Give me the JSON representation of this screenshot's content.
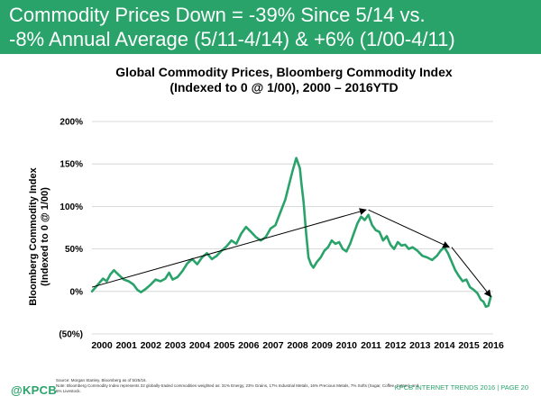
{
  "banner": {
    "line1": "Commodity Prices Down = -39% Since 5/14 vs.",
    "line2": "-8% Annual Average (5/11-4/14) & +6% (1/00-4/11)"
  },
  "chart_data": {
    "type": "line",
    "title_line1": "Global Commodity Prices, Bloomberg Commodity Index",
    "title_line2": "(Indexed to 0 @ 1/00), 2000 – 2016YTD",
    "ylabel_line1": "Bloomberg Commodity Index",
    "ylabel_line2": "(Indexed to 0 @ 1/00)",
    "xlabel": "",
    "xlim": [
      2000,
      2016.4
    ],
    "ylim": [
      -50,
      200
    ],
    "yticks": [
      200,
      150,
      100,
      50,
      0,
      -50
    ],
    "ytick_labels": [
      "200%",
      "150%",
      "100%",
      "50%",
      "0%",
      "(50%)"
    ],
    "xticks": [
      2000,
      2001,
      2002,
      2003,
      2004,
      2005,
      2006,
      2007,
      2008,
      2009,
      2010,
      2011,
      2012,
      2013,
      2014,
      2015,
      2016
    ],
    "xtick_labels": [
      "2000",
      "2001",
      "2002",
      "2003",
      "2004",
      "2005",
      "2006",
      "2007",
      "2008",
      "2009",
      "2010",
      "2011",
      "2012",
      "2013",
      "2014",
      "2015",
      "2016"
    ],
    "grid": true,
    "series": [
      {
        "color": "#2aa36b",
        "x": [
          2000.0,
          2000.15,
          2000.3,
          2000.45,
          2000.6,
          2000.75,
          2000.9,
          2001.0,
          2001.15,
          2001.3,
          2001.5,
          2001.7,
          2001.85,
          2002.0,
          2002.2,
          2002.4,
          2002.6,
          2002.8,
          2003.0,
          2003.15,
          2003.3,
          2003.5,
          2003.7,
          2003.9,
          2004.1,
          2004.3,
          2004.5,
          2004.7,
          2004.9,
          2005.1,
          2005.3,
          2005.5,
          2005.7,
          2005.9,
          2006.1,
          2006.3,
          2006.5,
          2006.7,
          2006.9,
          2007.1,
          2007.3,
          2007.5,
          2007.7,
          2007.9,
          2008.05,
          2008.2,
          2008.35,
          2008.5,
          2008.55,
          2008.65,
          2008.75,
          2008.85,
          2008.95,
          2009.05,
          2009.2,
          2009.35,
          2009.5,
          2009.65,
          2009.8,
          2009.95,
          2010.1,
          2010.25,
          2010.4,
          2010.55,
          2010.7,
          2010.85,
          2011.0,
          2011.15,
          2011.3,
          2011.45,
          2011.6,
          2011.75,
          2011.9,
          2012.05,
          2012.2,
          2012.35,
          2012.5,
          2012.65,
          2012.8,
          2012.95,
          2013.1,
          2013.3,
          2013.5,
          2013.7,
          2013.9,
          2014.1,
          2014.25,
          2014.4,
          2014.55,
          2014.7,
          2014.85,
          2015.0,
          2015.15,
          2015.3,
          2015.45,
          2015.6,
          2015.75,
          2015.9,
          2016.0,
          2016.1,
          2016.2,
          2016.3
        ],
        "values": [
          0,
          5,
          10,
          15,
          12,
          20,
          25,
          22,
          18,
          14,
          12,
          8,
          2,
          -1,
          3,
          8,
          14,
          12,
          15,
          22,
          14,
          17,
          24,
          33,
          38,
          32,
          40,
          45,
          38,
          42,
          48,
          53,
          60,
          56,
          68,
          76,
          70,
          64,
          60,
          64,
          74,
          78,
          93,
          108,
          125,
          142,
          157,
          145,
          130,
          105,
          70,
          40,
          32,
          28,
          35,
          40,
          48,
          52,
          60,
          56,
          58,
          50,
          47,
          56,
          68,
          80,
          88,
          84,
          90,
          78,
          72,
          70,
          60,
          65,
          55,
          50,
          58,
          54,
          55,
          50,
          52,
          48,
          42,
          40,
          37,
          42,
          48,
          52,
          45,
          35,
          25,
          18,
          12,
          14,
          5,
          2,
          -2,
          -10,
          -12,
          -18,
          -17,
          -6
        ]
      }
    ],
    "annotations": [
      {
        "type": "arrow",
        "from": [
          2000.0,
          5
        ],
        "to": [
          2011.2,
          96
        ]
      },
      {
        "type": "arrow",
        "from": [
          2011.3,
          96
        ],
        "to": [
          2014.6,
          52
        ]
      },
      {
        "type": "arrow",
        "from": [
          2014.7,
          52
        ],
        "to": [
          2016.3,
          -6
        ]
      }
    ]
  },
  "footer": {
    "logo": "@KPCB",
    "source": "Source: Morgan Stanley, Bloomberg as of 5/25/16.",
    "note1": "Note: Bloomberg Commodity Index represents 22 globally-traded commodities weighted as: 31% Energy, 23% Grains, 17% Industrial Metals, 16% Precious Metals, 7% Softs (Sugar, Coffee, Cotton), and",
    "note2": "6% Livestock.",
    "right": "KPCB INTERNET TRENDS 2016  |  PAGE 20"
  }
}
